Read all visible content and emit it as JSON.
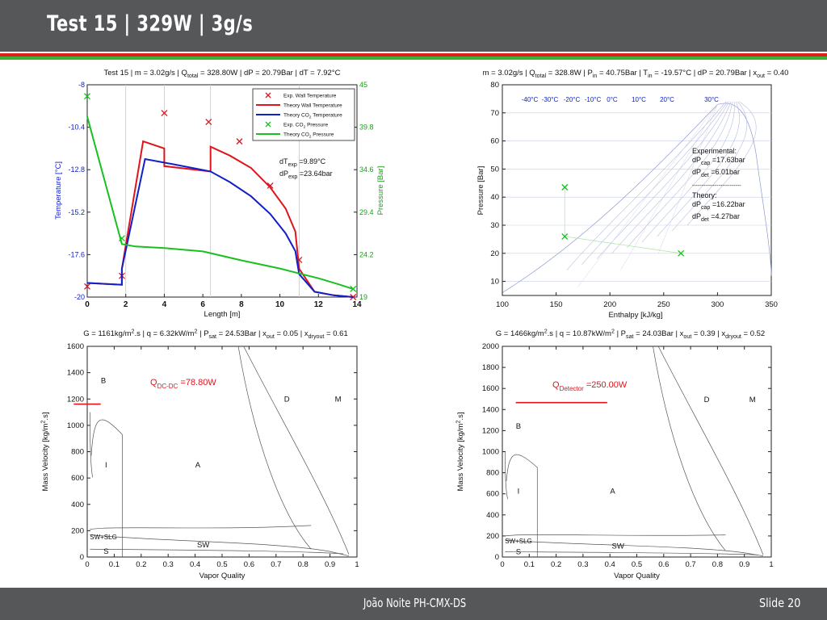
{
  "slide": {
    "title": "Test 15 |  329W | 3g/s",
    "footer_author": "João Noite PH-CMX-DS",
    "footer_slide": "Slide 20"
  },
  "chart_data": [
    {
      "type": "line",
      "id": "temperature-pressure-profile",
      "title": "Test 15 | m = 3.02g/s | Q_total = 328.80W | dP = 20.79Bar | dT = 7.92°C",
      "xlabel": "Length [m]",
      "ylabel": "Temperature [°C]",
      "y2label": "Pressure [Bar]",
      "xlim": [
        0,
        14
      ],
      "ylim": [
        -20,
        -8
      ],
      "y2lim": [
        19,
        45
      ],
      "x_ticks": [
        "0",
        "2",
        "4",
        "6",
        "8",
        "10",
        "12",
        "14"
      ],
      "y_ticks": [
        "-8",
        "-10.4",
        "-12.8",
        "-15.2",
        "-17.6",
        "-20"
      ],
      "y2_ticks": [
        "45",
        "39.8",
        "34.6",
        "29.4",
        "24.2",
        "19"
      ],
      "legend": [
        "Exp. Wall Temperature",
        "Theory  Wall Temperature",
        "Theory  CO2 Temperature",
        "Exp. CO2 Pressure",
        "Theory  CO2 Pressure"
      ],
      "annotation_lines": [
        "dT",
        "exp",
        " =9.89°C",
        "dP",
        "exp",
        " =23.64bar"
      ],
      "colors": {
        "wall": "#e0141c",
        "co2": "#1020c8",
        "pressure": "#18c020",
        "exp_temp": "#e0141c",
        "exp_pressure": "#18c020",
        "left_axis": "#1020c8",
        "right_axis": "#18a018"
      },
      "series": [
        {
          "name": "Exp. Wall Temperature",
          "axis": "left",
          "style": "marker-x",
          "x": [
            0,
            1.8,
            4,
            6.3,
            7.9,
            9.5,
            11,
            13.8
          ],
          "y": [
            -19.4,
            -18.8,
            -9.6,
            -10.1,
            -11.2,
            -13.7,
            -17.9,
            -20.0
          ]
        },
        {
          "name": "Theory  Wall Temperature",
          "axis": "left",
          "style": "line",
          "x": [
            0,
            1.8,
            1.8,
            2.9,
            4,
            4,
            6.4,
            6.4,
            7.4,
            8.5,
            9.5,
            10.3,
            10.8,
            11,
            11.8,
            12.8,
            13.8
          ],
          "y": [
            -19.2,
            -19.3,
            -18.4,
            -11.2,
            -11.6,
            -12.6,
            -12.9,
            -11.5,
            -12.0,
            -12.7,
            -13.8,
            -15.0,
            -16.3,
            -18.4,
            -19.7,
            -19.9,
            -20.0
          ]
        },
        {
          "name": "Theory  CO2 Temperature",
          "axis": "left",
          "style": "line",
          "x": [
            0,
            1.8,
            1.8,
            3.0,
            4.5,
            6.4,
            7.4,
            8.5,
            9.5,
            10.3,
            10.8,
            11,
            11.8,
            12.8,
            13.8
          ],
          "y": [
            -19.2,
            -19.3,
            -18.4,
            -12.2,
            -12.5,
            -12.9,
            -13.5,
            -14.3,
            -15.3,
            -16.4,
            -17.4,
            -18.7,
            -19.7,
            -19.9,
            -20.0
          ]
        },
        {
          "name": "Exp. CO2 Pressure",
          "axis": "right",
          "style": "marker-x",
          "x": [
            0,
            1.8,
            13.8
          ],
          "y": [
            43.6,
            26.2,
            20.0
          ]
        },
        {
          "name": "Theory  CO2 Pressure",
          "axis": "right",
          "style": "line",
          "x": [
            0,
            1.8,
            2.5,
            4,
            6,
            8,
            10,
            11,
            12,
            13,
            13.8
          ],
          "y": [
            41.1,
            25.5,
            25.2,
            25.0,
            24.6,
            23.5,
            22.5,
            21.9,
            21.3,
            20.6,
            20.0
          ]
        }
      ]
    },
    {
      "type": "line",
      "id": "pressure-enthalpy-diagram",
      "title": "m = 3.02g/s | Q_total = 328.8W | P_in = 40.75Bar | T_in = -19.57°C | dP = 20.79Bar | x_out = 0.40",
      "xlabel": "Enthalpy [kJ/kg]",
      "ylabel": "Pressure [Bar]",
      "xlim": [
        100,
        350
      ],
      "ylim": [
        5,
        80
      ],
      "x_ticks": [
        "100",
        "150",
        "200",
        "250",
        "300",
        "350"
      ],
      "y_ticks": [
        "80",
        "70",
        "60",
        "50",
        "40",
        "30",
        "20",
        "10"
      ],
      "isotherm_labels": [
        "-40°C",
        "-30°C",
        "-20°C",
        "-10°C",
        "0°C",
        "10°C",
        "20°C",
        "30°C"
      ],
      "annotation_lines": [
        "Experimental:",
        "dP",
        "cap",
        " =17.63bar",
        "dP",
        "det",
        " =6.01bar",
        "--------------------------",
        "Theory:",
        "dP",
        "cap",
        " =16.22bar",
        "dP",
        "det",
        " =4.27bar"
      ],
      "colors": {
        "markers": "#18c020",
        "isotherm_labels": "#1020c8"
      },
      "series": [
        {
          "name": "Experimental points",
          "style": "marker-x",
          "x": [
            158,
            158,
            266
          ],
          "y": [
            43.5,
            26,
            20
          ]
        }
      ]
    },
    {
      "type": "line",
      "id": "flow-pattern-map-1",
      "title": "G = 1161kg/m2.s | q = 6.32kW/m2 | P_sat = 24.53Bar | x_out = 0.05 | x_dryout = 0.61",
      "xlabel": "Vapor Quality",
      "ylabel": "Mass Velocity [kg/m2.s]",
      "xlim": [
        0,
        1
      ],
      "ylim": [
        0,
        1600
      ],
      "x_ticks": [
        "0",
        "0.1",
        "0.2",
        "0.3",
        "0.4",
        "0.5",
        "0.6",
        "0.7",
        "0.8",
        "0.9",
        "1"
      ],
      "y_ticks": [
        "1600",
        "1400",
        "1200",
        "1000",
        "800",
        "600",
        "400",
        "200",
        "0"
      ],
      "region_labels": [
        "B",
        "I",
        "A",
        "D",
        "M",
        "SW+SLG",
        "SW",
        "S"
      ],
      "power_label": {
        "main": "Q",
        "sub": "DC-DC",
        "value": " =78.80W"
      },
      "colors": {
        "operating_line": "#e0141c",
        "power_label": "#e0141c"
      },
      "series": [
        {
          "name": "Operating point",
          "style": "line",
          "x": [
            -0.05,
            0.05
          ],
          "y": [
            1161,
            1161
          ]
        }
      ]
    },
    {
      "type": "line",
      "id": "flow-pattern-map-2",
      "title": "G = 1466kg/m2.s | q = 10.87kW/m2 | P_sat = 24.03Bar | x_out = 0.39 | x_dryout = 0.52",
      "xlabel": "Vapor Quality",
      "ylabel": "Mass Velocity [kg/m2.s]",
      "xlim": [
        0,
        1
      ],
      "ylim": [
        0,
        2000
      ],
      "x_ticks": [
        "0",
        "0.1",
        "0.2",
        "0.3",
        "0.4",
        "0.5",
        "0.6",
        "0.7",
        "0.8",
        "0.9",
        "1"
      ],
      "y_ticks": [
        "2000",
        "1800",
        "1600",
        "1400",
        "1200",
        "1000",
        "800",
        "600",
        "400",
        "200",
        "0"
      ],
      "region_labels": [
        "B",
        "I",
        "A",
        "D",
        "M",
        "SW+SLG",
        "SW",
        "S"
      ],
      "power_label": {
        "main": "Q",
        "sub": "Detector",
        "value": " =250.00W"
      },
      "colors": {
        "operating_line": "#e0141c",
        "power_label": "#e0141c"
      },
      "series": [
        {
          "name": "Operating point",
          "style": "line",
          "x": [
            0.05,
            0.39
          ],
          "y": [
            1466,
            1466
          ]
        }
      ]
    }
  ]
}
